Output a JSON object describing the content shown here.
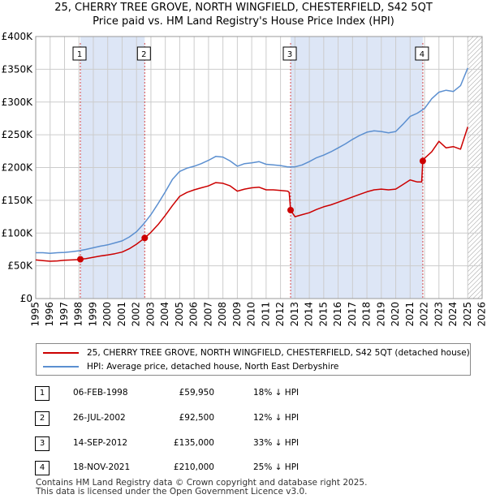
{
  "title_line1": "25, CHERRY TREE GROVE, NORTH WINGFIELD, CHESTERFIELD, S42 5QT",
  "title_line2": "Price paid vs. HM Land Registry's House Price Index (HPI)",
  "legend": {
    "red_label": "25, CHERRY TREE GROVE, NORTH WINGFIELD, CHESTERFIELD, S42 5QT (detached house)",
    "blue_label": "HPI: Average price, detached house, North East Derbyshire"
  },
  "colors": {
    "red": "#cc0000",
    "blue": "#5b8fd0",
    "shade": "#dde6f6",
    "grid": "#cccccc"
  },
  "transactions": [
    {
      "num": "1",
      "date": "06-FEB-1998",
      "price": "£59,950",
      "hpi": "18% ↓ HPI"
    },
    {
      "num": "2",
      "date": "26-JUL-2002",
      "price": "£92,500",
      "hpi": "12% ↓ HPI"
    },
    {
      "num": "3",
      "date": "14-SEP-2012",
      "price": "£135,000",
      "hpi": "33% ↓ HPI"
    },
    {
      "num": "4",
      "date": "18-NOV-2021",
      "price": "£210,000",
      "hpi": "25% ↓ HPI"
    }
  ],
  "footer": {
    "line1": "Contains HM Land Registry data © Crown copyright and database right 2025.",
    "line2": "This data is licensed under the Open Government Licence v3.0."
  },
  "chart_data": {
    "type": "line",
    "title": "25, CHERRY TREE GROVE, NORTH WINGFIELD, CHESTERFIELD, S42 5QT",
    "xlim": [
      1995,
      2026
    ],
    "ylim": [
      0,
      400000
    ],
    "x_ticks": [
      1995,
      1996,
      1997,
      1998,
      1999,
      2000,
      2001,
      2002,
      2003,
      2004,
      2005,
      2006,
      2007,
      2008,
      2009,
      2010,
      2011,
      2012,
      2013,
      2014,
      2015,
      2016,
      2017,
      2018,
      2019,
      2020,
      2021,
      2022,
      2023,
      2024,
      2025,
      2026
    ],
    "y_ticks": [
      {
        "value": 0,
        "label": "£0"
      },
      {
        "value": 50000,
        "label": "£50K"
      },
      {
        "value": 100000,
        "label": "£100K"
      },
      {
        "value": 150000,
        "label": "£150K"
      },
      {
        "value": 200000,
        "label": "£200K"
      },
      {
        "value": 250000,
        "label": "£250K"
      },
      {
        "value": 300000,
        "label": "£300K"
      },
      {
        "value": 350000,
        "label": "£350K"
      },
      {
        "value": 400000,
        "label": "£400K"
      }
    ],
    "shaded_ranges": [
      [
        1998.1,
        2002.57
      ],
      [
        2012.7,
        2021.88
      ]
    ],
    "hatch_from": 2025.0,
    "sales": [
      {
        "label": "1",
        "x": 1998.1,
        "y": 59950
      },
      {
        "label": "2",
        "x": 2002.57,
        "y": 92500
      },
      {
        "label": "3",
        "x": 2012.7,
        "y": 135000
      },
      {
        "label": "4",
        "x": 2021.88,
        "y": 210000
      }
    ],
    "series": [
      {
        "name": "HPI: Average price, detached house, North East Derbyshire",
        "color": "#5b8fd0",
        "x": [
          1995.0,
          1995.5,
          1996.0,
          1996.5,
          1997.0,
          1997.5,
          1998.0,
          1998.5,
          1999.0,
          1999.5,
          2000.0,
          2000.5,
          2001.0,
          2001.5,
          2002.0,
          2002.5,
          2003.0,
          2003.5,
          2004.0,
          2004.5,
          2005.0,
          2005.5,
          2006.0,
          2006.5,
          2007.0,
          2007.5,
          2008.0,
          2008.5,
          2009.0,
          2009.5,
          2010.0,
          2010.5,
          2011.0,
          2011.5,
          2012.0,
          2012.5,
          2013.0,
          2013.5,
          2014.0,
          2014.5,
          2015.0,
          2015.5,
          2016.0,
          2016.5,
          2017.0,
          2017.5,
          2018.0,
          2018.5,
          2019.0,
          2019.5,
          2020.0,
          2020.5,
          2021.0,
          2021.5,
          2022.0,
          2022.5,
          2023.0,
          2023.5,
          2024.0,
          2024.5,
          2025.0
        ],
        "y": [
          70000,
          70000,
          69000,
          70000,
          70500,
          71500,
          73000,
          75000,
          77500,
          80000,
          82000,
          85000,
          88000,
          94000,
          102000,
          114000,
          128000,
          145000,
          163000,
          182000,
          194000,
          199000,
          202000,
          206000,
          211000,
          217000,
          216000,
          210000,
          202000,
          206000,
          207000,
          209000,
          205000,
          204000,
          203000,
          201000,
          201000,
          204000,
          209000,
          215000,
          219000,
          224000,
          230000,
          236000,
          243000,
          249000,
          254000,
          256000,
          255000,
          253000,
          255000,
          266000,
          278000,
          283000,
          290000,
          305000,
          315000,
          318000,
          316000,
          325000,
          352000
        ]
      },
      {
        "name": "25, CHERRY TREE GROVE, NORTH WINGFIELD, CHESTERFIELD, S42 5QT (detached house)",
        "color": "#cc0000",
        "x": [
          1995.0,
          1995.5,
          1996.0,
          1996.5,
          1997.0,
          1997.5,
          1998.0,
          1998.1,
          1998.5,
          1999.0,
          1999.5,
          2000.0,
          2000.5,
          2001.0,
          2001.5,
          2002.0,
          2002.57,
          2003.0,
          2003.5,
          2004.0,
          2004.5,
          2005.0,
          2005.5,
          2006.0,
          2006.5,
          2007.0,
          2007.5,
          2008.0,
          2008.5,
          2009.0,
          2009.5,
          2010.0,
          2010.5,
          2011.0,
          2011.5,
          2012.0,
          2012.5,
          2012.6,
          2012.7,
          2013.0,
          2013.5,
          2014.0,
          2014.5,
          2015.0,
          2015.5,
          2016.0,
          2016.5,
          2017.0,
          2017.5,
          2018.0,
          2018.5,
          2019.0,
          2019.5,
          2020.0,
          2020.5,
          2021.0,
          2021.5,
          2021.8,
          2021.88,
          2022.0,
          2022.5,
          2023.0,
          2023.5,
          2024.0,
          2024.5,
          2025.0
        ],
        "y": [
          59000,
          58000,
          57000,
          57500,
          58500,
          59000,
          59500,
          59950,
          61000,
          63000,
          65000,
          66500,
          68500,
          71000,
          76000,
          83000,
          92500,
          101000,
          113000,
          127000,
          142000,
          156000,
          162000,
          166000,
          169000,
          172000,
          177000,
          176000,
          172000,
          164000,
          167000,
          169000,
          170000,
          166000,
          166000,
          165000,
          164000,
          162000,
          135000,
          125000,
          128000,
          131000,
          136000,
          140000,
          143000,
          147000,
          151000,
          155000,
          159000,
          163000,
          166000,
          167000,
          166000,
          167000,
          174000,
          181000,
          178000,
          178000,
          210000,
          214000,
          224000,
          240000,
          230000,
          232000,
          228000,
          262000
        ]
      }
    ]
  }
}
